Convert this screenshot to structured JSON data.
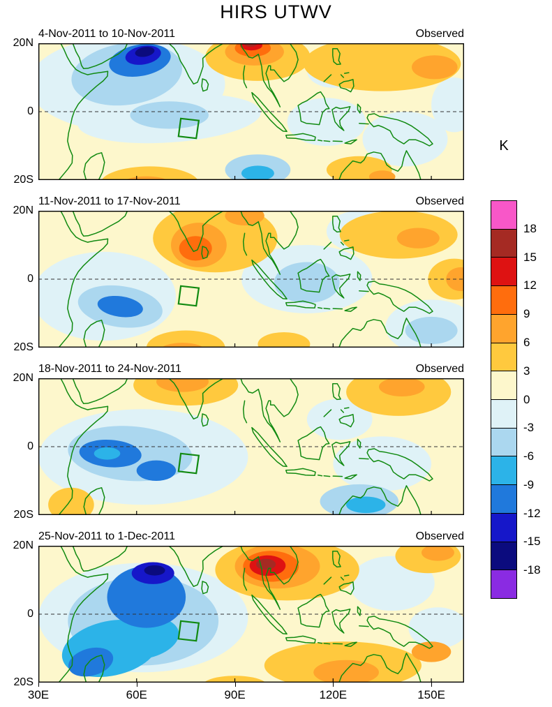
{
  "title": "HIRS UTWV",
  "axes": {
    "lat_ticks": [
      "20N",
      "0",
      "20S"
    ],
    "lon_ticks": [
      {
        "label": "30E",
        "value": 30
      },
      {
        "label": "60E",
        "value": 60
      },
      {
        "label": "90E",
        "value": 90
      },
      {
        "label": "120E",
        "value": 120
      },
      {
        "label": "150E",
        "value": 150
      }
    ]
  },
  "colorbar": {
    "unit": "K",
    "tick_labels": [
      "18",
      "15",
      "12",
      "9",
      "6",
      "3",
      "0",
      "-3",
      "-6",
      "-9",
      "-12",
      "-15",
      "-18"
    ],
    "tick_values": [
      18,
      15,
      12,
      9,
      6,
      3,
      0,
      -3,
      -6,
      -9,
      -12,
      -15,
      -18
    ],
    "segments_top_to_bottom": [
      "pink",
      "darkred",
      "red",
      "orangered",
      "orange",
      "gold",
      "paleyellow",
      "palecyan",
      "lightblue",
      "cyan",
      "blue",
      "darkblue",
      "navy",
      "purple"
    ],
    "band_colors": {
      "pink": "#F857C8",
      "darkred": "#A52A23",
      "red": "#DE1212",
      "orangered": "#FF6D0D",
      "orange": "#FFA42D",
      "gold": "#FFC93E",
      "paleyellow": "#FDF7CC",
      "palecyan": "#DFF2F7",
      "lightblue": "#ABD7EF",
      "cyan": "#2CB3E8",
      "blue": "#2079DC",
      "darkblue": "#1617C9",
      "navy": "#0B0B7E",
      "purple": "#8A2BE2"
    }
  },
  "map": {
    "coastline_color": "#118a11",
    "equator_line": "dashed",
    "background_band": "paleyellow"
  },
  "chart_data": {
    "type": "heatmap",
    "subtype": "filled_contour_anomaly_maps",
    "units": "K",
    "contour_interval": 3,
    "value_range": [
      -18,
      18
    ],
    "lon_range": [
      30,
      160
    ],
    "lat_range": [
      -20,
      20
    ],
    "eio_box_lonlat": [
      [
        73.5,
        -2
      ],
      [
        79,
        -2.6
      ],
      [
        78.2,
        -7.8
      ],
      [
        72.8,
        -7.2
      ]
    ],
    "panels": [
      {
        "date_range": "4-Nov-2011 to 10-Nov-2011",
        "source_label": "Observed",
        "anomaly_blobs": [
          [
            57,
            8,
            30,
            14,
            0,
            "palecyan"
          ],
          [
            70,
            -2,
            28,
            7,
            -4,
            "palecyan"
          ],
          [
            118,
            -3,
            12,
            7,
            0,
            "palecyan"
          ],
          [
            142,
            -8,
            13,
            8,
            0,
            "palecyan"
          ],
          [
            120,
            12,
            8,
            5,
            0,
            "palecyan"
          ],
          [
            157,
            2,
            7,
            8,
            0,
            "palecyan"
          ],
          [
            57,
            11,
            17,
            9,
            -8,
            "lightblue"
          ],
          [
            70,
            -1,
            12,
            4,
            0,
            "lightblue"
          ],
          [
            97,
            -17,
            10,
            4.5,
            0,
            "lightblue"
          ],
          [
            97,
            -18,
            5,
            2.2,
            0,
            "cyan"
          ],
          [
            61,
            15,
            9.5,
            4.6,
            -10,
            "blue"
          ],
          [
            62,
            16.5,
            5.5,
            2.7,
            -10,
            "darkblue"
          ],
          [
            62.5,
            17.5,
            3,
            1.4,
            -10,
            "navy"
          ],
          [
            135,
            14,
            24,
            8,
            0,
            "gold"
          ],
          [
            97,
            16,
            16,
            7,
            0,
            "gold"
          ],
          [
            96,
            17.5,
            9,
            4,
            0,
            "orange"
          ],
          [
            95.5,
            18.6,
            5.5,
            2.5,
            0,
            "orangered"
          ],
          [
            95,
            19.4,
            3.4,
            1.5,
            0,
            "red"
          ],
          [
            94.8,
            19.9,
            2,
            0.9,
            0,
            "darkred"
          ],
          [
            151,
            13,
            7,
            3.5,
            0,
            "orange"
          ],
          [
            64,
            -21,
            15,
            5,
            0,
            "gold"
          ],
          [
            63,
            -21.5,
            8,
            2.6,
            0,
            "orange"
          ],
          [
            128,
            -17,
            10,
            4,
            0,
            "gold"
          ],
          [
            135,
            -19,
            4,
            1.8,
            0,
            "orange"
          ]
        ]
      },
      {
        "date_range": "11-Nov-2011 to 17-Nov-2011",
        "source_label": "Observed",
        "anomaly_blobs": [
          [
            50,
            -5,
            22,
            13,
            0,
            "palecyan"
          ],
          [
            112,
            0,
            20,
            10,
            0,
            "palecyan"
          ],
          [
            150,
            -14,
            14,
            8,
            0,
            "palecyan"
          ],
          [
            128,
            14,
            10,
            6,
            0,
            "palecyan"
          ],
          [
            55,
            -8,
            13,
            6,
            8,
            "lightblue"
          ],
          [
            55,
            -8,
            7,
            3,
            8,
            "blue"
          ],
          [
            112,
            -1,
            10,
            6,
            0,
            "lightblue"
          ],
          [
            150,
            -15,
            8,
            4,
            0,
            "lightblue"
          ],
          [
            84,
            12,
            19,
            10,
            0,
            "gold"
          ],
          [
            79,
            10,
            8.5,
            6.5,
            0,
            "orange"
          ],
          [
            93,
            18.5,
            6,
            2.8,
            0,
            "orange"
          ],
          [
            78,
            9,
            5,
            3.6,
            0,
            "orangered"
          ],
          [
            140,
            13,
            18,
            7,
            0,
            "gold"
          ],
          [
            146,
            12,
            6.5,
            3,
            0,
            "orange"
          ],
          [
            157,
            0,
            8,
            6,
            0,
            "gold"
          ],
          [
            159,
            0,
            4.5,
            3.5,
            0,
            "orange"
          ],
          [
            75,
            -20,
            12,
            5,
            0,
            "gold"
          ],
          [
            74,
            -21,
            7,
            2.4,
            0,
            "orange"
          ],
          [
            105,
            -19,
            8,
            3.5,
            0,
            "gold"
          ]
        ]
      },
      {
        "date_range": "18-Nov-2011 to 24-Nov-2011",
        "source_label": "Observed",
        "anomaly_blobs": [
          [
            62,
            -3,
            32,
            14,
            0,
            "palecyan"
          ],
          [
            135,
            -5,
            15,
            8,
            0,
            "palecyan"
          ],
          [
            122,
            8,
            10,
            6,
            0,
            "palecyan"
          ],
          [
            58,
            -2,
            19,
            8,
            4,
            "lightblue"
          ],
          [
            52,
            -2,
            9.5,
            4,
            4,
            "blue"
          ],
          [
            51,
            -2,
            4,
            1.8,
            0,
            "cyan"
          ],
          [
            66,
            -7,
            6,
            3,
            0,
            "blue"
          ],
          [
            128,
            -16,
            12,
            5,
            0,
            "lightblue"
          ],
          [
            130,
            -17,
            6,
            2.4,
            0,
            "cyan"
          ],
          [
            75,
            18,
            16,
            6,
            0,
            "gold"
          ],
          [
            74,
            19,
            8,
            3,
            0,
            "orange"
          ],
          [
            140,
            16,
            16,
            7,
            0,
            "gold"
          ],
          [
            141,
            17.5,
            7,
            2.8,
            0,
            "orange"
          ],
          [
            40,
            -17,
            7,
            5,
            0,
            "gold"
          ]
        ]
      },
      {
        "date_range": "25-Nov-2011 to 1-Dec-2011",
        "source_label": "Observed",
        "anomaly_blobs": [
          [
            62,
            -1,
            32,
            16,
            0,
            "palecyan"
          ],
          [
            138,
            9,
            13,
            8,
            0,
            "palecyan"
          ],
          [
            152,
            -4,
            9,
            6,
            0,
            "palecyan"
          ],
          [
            62,
            -2,
            23,
            13,
            0,
            "lightblue"
          ],
          [
            52,
            -10,
            15,
            8,
            -12,
            "cyan"
          ],
          [
            62,
            -7,
            11,
            6,
            -10,
            "cyan"
          ],
          [
            63,
            5,
            12,
            9,
            0,
            "blue"
          ],
          [
            46,
            -14,
            7,
            4,
            -15,
            "blue"
          ],
          [
            65,
            12,
            6.5,
            3.2,
            0,
            "darkblue"
          ],
          [
            65.5,
            12.8,
            3.2,
            1.5,
            0,
            "navy"
          ],
          [
            106,
            13,
            22,
            9,
            0,
            "gold"
          ],
          [
            103,
            14,
            13,
            6.5,
            0,
            "orange"
          ],
          [
            101,
            14,
            8.5,
            4.5,
            0,
            "orangered"
          ],
          [
            100,
            14.2,
            5.5,
            3,
            0,
            "red"
          ],
          [
            99.5,
            14.6,
            3,
            1.6,
            0,
            "darkred"
          ],
          [
            149,
            17,
            10,
            5,
            0,
            "gold"
          ],
          [
            152,
            18,
            5,
            2.4,
            0,
            "orange"
          ],
          [
            123,
            -15,
            24,
            7,
            0,
            "gold"
          ],
          [
            124,
            -17,
            10,
            3.6,
            0,
            "orange"
          ],
          [
            150,
            -11,
            6,
            3,
            0,
            "orange"
          ],
          [
            90,
            -21,
            10,
            3,
            0,
            "gold"
          ]
        ]
      }
    ]
  }
}
